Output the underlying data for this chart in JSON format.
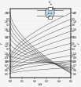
{
  "background_color": "#f5f5f5",
  "curve_color": "#444444",
  "xlim": [
    0.0,
    0.5
  ],
  "ylim": [
    0.4,
    2.1
  ],
  "xticks": [
    0.0,
    0.1,
    0.2,
    0.3,
    0.4,
    0.5
  ],
  "yticks_left": [
    0.5,
    0.6,
    0.7,
    0.8,
    0.9,
    1.0,
    1.2,
    1.4,
    1.6,
    1.8,
    2.0
  ],
  "yticks_right": [
    0.5,
    0.6,
    0.7,
    0.8,
    0.9,
    1.0,
    1.2,
    1.4,
    1.6,
    1.8,
    2.0
  ],
  "xlabel": "b/t",
  "ylabel_left": "f",
  "ylabel_right": "f",
  "desc_start_y": [
    2.0,
    1.85,
    1.7,
    1.55,
    1.4,
    1.25,
    1.1,
    0.95,
    0.8,
    0.65
  ],
  "desc_end_y": [
    0.5,
    0.52,
    0.54,
    0.57,
    0.6,
    0.63,
    0.67,
    0.71,
    0.76,
    0.82
  ],
  "asc_start_y": [
    0.5,
    0.52,
    0.55,
    0.58,
    0.62,
    0.66,
    0.71,
    0.76,
    0.82,
    0.88
  ],
  "asc_end_y": [
    0.65,
    0.8,
    0.95,
    1.1,
    1.25,
    1.4,
    1.55,
    1.7,
    1.85,
    2.0
  ],
  "desc_labels": [
    "0.1",
    "0.2",
    "0.3",
    "0.4",
    "0.5",
    "0.6",
    "0.7",
    "0.8",
    "0.9",
    "1.0"
  ],
  "asc_labels": [
    "0.1",
    "0.2",
    "0.3",
    "0.4",
    "0.5",
    "0.6",
    "0.7",
    "0.8",
    "0.9",
    "1.0"
  ],
  "schematic_color": "#b8d8ea",
  "schematic_edge": "#555555",
  "grid_color": "#cccccc"
}
